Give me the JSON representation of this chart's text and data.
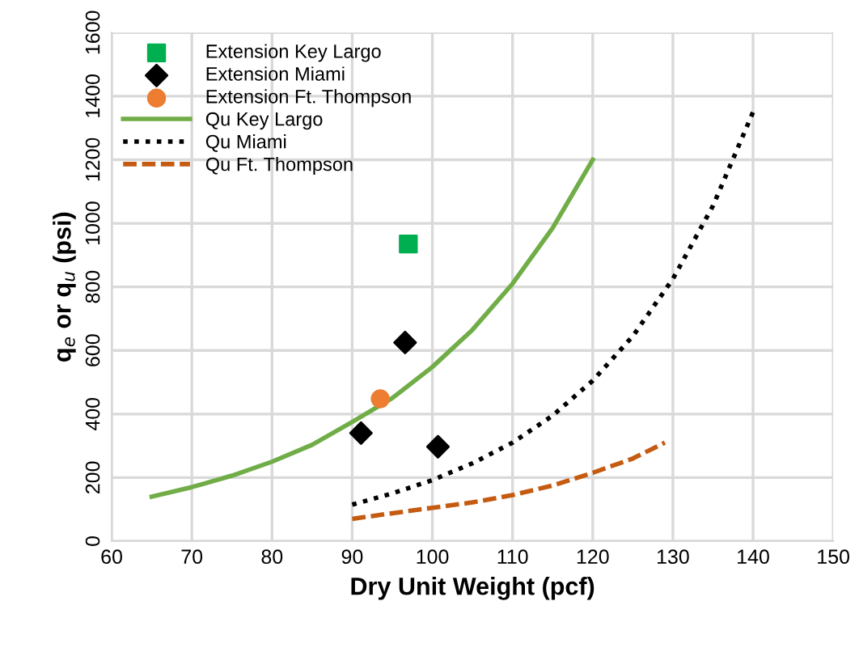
{
  "chart_data": {
    "type": "scatter",
    "xlabel": "Dry Unit Weight (pcf)",
    "ylabel": "q$_{e}$ or q$_{u}$ (psi)",
    "xlim": [
      60,
      150
    ],
    "xticks": [
      60,
      70,
      80,
      90,
      100,
      110,
      120,
      130,
      140,
      150
    ],
    "ylim": [
      0,
      1600
    ],
    "yticks": [
      0,
      200,
      400,
      600,
      800,
      1000,
      1200,
      1400,
      1600
    ],
    "grid": true,
    "legend": "top left",
    "series": [
      {
        "name": "Extension Key Largo",
        "marker": "square",
        "color": "#00b050",
        "x": [
          97
        ],
        "values": [
          935
        ]
      },
      {
        "name": "Extension Miami",
        "marker": "diamond",
        "color": "#000000",
        "x": [
          96.6,
          91.1,
          100.7
        ],
        "values": [
          625,
          340,
          297
        ]
      },
      {
        "name": "Extension Ft. Thompson",
        "marker": "circle",
        "color": "#ed7d31",
        "x": [
          93.5
        ],
        "values": [
          448
        ]
      },
      {
        "name": "Qu Key Largo",
        "type": "line",
        "line_style": "solid",
        "color": "#70ad47",
        "x": [
          65,
          70,
          75,
          80,
          85,
          90,
          95,
          100,
          105,
          110,
          115,
          120
        ],
        "values": [
          140,
          170,
          206,
          250,
          303,
          375,
          450,
          548,
          665,
          810,
          985,
          1200
        ]
      },
      {
        "name": "Qu Miami",
        "type": "line",
        "line_style": "dotted",
        "color": "#000000",
        "x": [
          90,
          95,
          100,
          105,
          110,
          115,
          120,
          125,
          130,
          135,
          140
        ],
        "values": [
          115,
          150,
          192,
          245,
          310,
          395,
          505,
          645,
          825,
          1055,
          1350
        ]
      },
      {
        "name": "Qu Ft. Thompson",
        "type": "line",
        "line_style": "dashed",
        "color": "#c55a11",
        "x": [
          90,
          95,
          100,
          105,
          110,
          115,
          120,
          125,
          129
        ],
        "values": [
          70,
          88,
          105,
          122,
          145,
          175,
          215,
          260,
          310
        ]
      }
    ]
  }
}
